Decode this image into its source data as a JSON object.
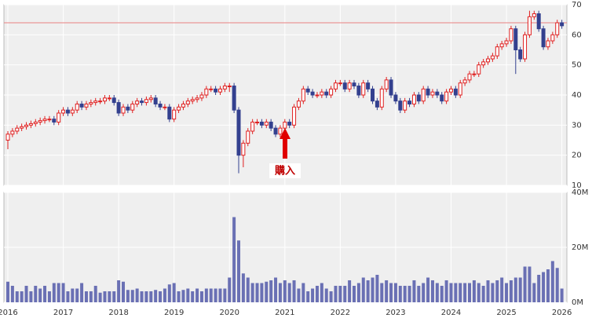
{
  "chart_data": [
    {
      "type": "candlestick",
      "open": [
        25,
        27,
        28,
        29,
        29.5,
        30,
        30.5,
        31,
        31.5,
        32,
        32,
        31,
        34,
        35,
        34,
        35,
        37,
        36,
        37,
        37.5,
        38,
        38,
        39,
        39,
        37.5,
        34,
        36,
        35,
        37,
        38,
        37.5,
        38.5,
        39,
        37,
        36,
        36,
        32,
        35,
        36,
        37,
        38,
        38.5,
        39,
        40,
        42,
        42,
        41,
        42,
        43,
        43,
        35,
        20,
        24,
        28,
        31,
        31,
        30,
        31,
        29,
        27,
        29,
        31,
        30,
        36,
        38,
        42,
        41,
        40,
        40,
        41,
        40,
        42,
        44,
        44,
        42,
        44,
        43,
        40,
        44,
        42,
        38,
        36,
        42,
        45,
        40,
        38,
        35,
        38,
        37,
        40,
        38,
        42,
        40,
        41,
        40,
        38,
        41,
        42,
        40,
        44,
        45,
        47,
        47,
        50,
        51,
        52,
        53,
        56,
        57,
        58,
        62,
        55,
        52,
        60,
        66,
        67,
        62,
        56,
        58,
        60,
        64
      ],
      "high": [
        28,
        29,
        30,
        30.5,
        31,
        31.5,
        32,
        32.5,
        33,
        33,
        33,
        35,
        36,
        36,
        36,
        38,
        38,
        38,
        38.5,
        39,
        39,
        40,
        40,
        40,
        38.5,
        37,
        37,
        38,
        39,
        39,
        39.5,
        40,
        40,
        38,
        37,
        37,
        36,
        37,
        38,
        39,
        39.5,
        40,
        41,
        43,
        43,
        43,
        43,
        44,
        44,
        44,
        36,
        25,
        29,
        32,
        32,
        32,
        32,
        32,
        30,
        30,
        32,
        32,
        37,
        39,
        43,
        43,
        42,
        41,
        42,
        42,
        43,
        45,
        45,
        45,
        45,
        45,
        44,
        45,
        45,
        43,
        39,
        43,
        46,
        46,
        41,
        39,
        39,
        39,
        41,
        41,
        43,
        43,
        42,
        42,
        41,
        42,
        43,
        43,
        45,
        46,
        48,
        48,
        51,
        52,
        53,
        54,
        57,
        58,
        59,
        63,
        63,
        56,
        61,
        68,
        68,
        68,
        63,
        59,
        61,
        65,
        65
      ],
      "low": [
        22,
        26,
        27,
        28,
        28.5,
        29,
        29.5,
        30,
        30.5,
        31,
        30,
        30,
        33,
        33,
        33,
        34,
        35,
        35,
        36,
        36.5,
        37,
        37,
        38,
        36.5,
        33,
        33,
        34,
        34,
        36,
        36.5,
        36.5,
        37.5,
        36,
        35,
        35,
        31,
        31,
        34,
        35,
        36,
        37,
        37.5,
        38,
        39,
        41,
        40,
        40,
        41,
        41,
        34,
        14,
        16,
        23,
        27,
        30,
        29,
        29,
        28,
        26,
        26,
        28,
        29,
        29,
        35,
        37,
        40,
        39,
        39,
        39,
        39,
        39,
        41,
        43,
        41,
        41,
        42,
        39,
        39,
        41,
        37,
        35,
        35,
        41,
        39,
        37,
        34,
        34,
        36,
        36,
        37,
        37,
        39,
        39,
        39,
        37,
        37,
        40,
        39,
        39,
        43,
        44,
        46,
        46,
        49,
        50,
        51,
        52,
        55,
        56,
        57,
        47,
        51,
        51,
        59,
        65,
        61,
        55,
        55,
        57,
        59,
        62
      ],
      "close": [
        27,
        28,
        29,
        29.5,
        30,
        30.5,
        31,
        31.5,
        32,
        32,
        31,
        34,
        35,
        34,
        35,
        37,
        36,
        37,
        37.5,
        38,
        38,
        39,
        39,
        37.5,
        34,
        36,
        35,
        37,
        38,
        37.5,
        38.5,
        39,
        37,
        36,
        36,
        32,
        35,
        36,
        37,
        38,
        38.5,
        39,
        40,
        42,
        42,
        41,
        42,
        43,
        43,
        35,
        20,
        24,
        28,
        31,
        31,
        30,
        31,
        29,
        27,
        29,
        31,
        30,
        36,
        38,
        42,
        41,
        40,
        40,
        41,
        40,
        42,
        44,
        44,
        42,
        44,
        43,
        40,
        44,
        42,
        38,
        36,
        42,
        45,
        40,
        38,
        35,
        38,
        37,
        40,
        38,
        42,
        40,
        41,
        40,
        38,
        41,
        42,
        40,
        44,
        45,
        47,
        47,
        50,
        51,
        52,
        53,
        56,
        57,
        58,
        62,
        55,
        52,
        60,
        66,
        67,
        62,
        56,
        58,
        60,
        64,
        63
      ],
      "up_color": "#e02020",
      "down_color": "#33408f",
      "ylim": [
        10,
        70
      ],
      "yticks": [
        10,
        20,
        30,
        40,
        50,
        60,
        70
      ],
      "hline": 64,
      "hline_color": "#e88080",
      "annotation": "購入",
      "grid": true
    },
    {
      "type": "bar",
      "categories": [
        "2016",
        null,
        null,
        null,
        null,
        null,
        null,
        null,
        null,
        null,
        null,
        null,
        "2017",
        null,
        null,
        null,
        null,
        null,
        null,
        null,
        null,
        null,
        null,
        null,
        "2018",
        null,
        null,
        null,
        null,
        null,
        null,
        null,
        null,
        null,
        null,
        null,
        "2019",
        null,
        null,
        null,
        null,
        null,
        null,
        null,
        null,
        null,
        null,
        null,
        "2020",
        null,
        null,
        null,
        null,
        null,
        null,
        null,
        null,
        null,
        null,
        null,
        "2021",
        null,
        null,
        null,
        null,
        null,
        null,
        null,
        null,
        null,
        null,
        null,
        "2022",
        null,
        null,
        null,
        null,
        null,
        null,
        null,
        null,
        null,
        null,
        null,
        "2023",
        null,
        null,
        null,
        null,
        null,
        null,
        null,
        null,
        null,
        null,
        null,
        "2024",
        null,
        null,
        null,
        null,
        null,
        null,
        null,
        null,
        null,
        null,
        null,
        "2025",
        null,
        null,
        null,
        null,
        null,
        null,
        null,
        null,
        null,
        null,
        null,
        "2026"
      ],
      "values": [
        7.5,
        6,
        4,
        4,
        6,
        4,
        6,
        5,
        6,
        4,
        7,
        7,
        7,
        4,
        5,
        5,
        7,
        4,
        4,
        6,
        3.5,
        4,
        4,
        4,
        8,
        7.5,
        4.5,
        4.5,
        5,
        4,
        4,
        4,
        4.5,
        4,
        5,
        6.5,
        7,
        4,
        4.5,
        5,
        4,
        5,
        4,
        5,
        5,
        5,
        5,
        5,
        9,
        31,
        22.5,
        10.5,
        9,
        7,
        7,
        7,
        7.5,
        8,
        9,
        7,
        8,
        7,
        8,
        5,
        7,
        4,
        5,
        6,
        7,
        5,
        4,
        6,
        6,
        6,
        8,
        6,
        7,
        9,
        8,
        9,
        10,
        7,
        8,
        7,
        7,
        6,
        6,
        6,
        8,
        6,
        7,
        9,
        8,
        7,
        6,
        8,
        7,
        7,
        7,
        7,
        7,
        8,
        7,
        6,
        8,
        7,
        8,
        9,
        7,
        8,
        9,
        9,
        13,
        13,
        7,
        10,
        11,
        12,
        15,
        12.5,
        5
      ],
      "color": "#6a70b4",
      "ylim": [
        0,
        40
      ],
      "yticks": [
        {
          "value": 0,
          "label": "0M"
        },
        {
          "value": 20,
          "label": "20M"
        },
        {
          "value": 40,
          "label": "40M"
        }
      ],
      "grid": true
    }
  ]
}
